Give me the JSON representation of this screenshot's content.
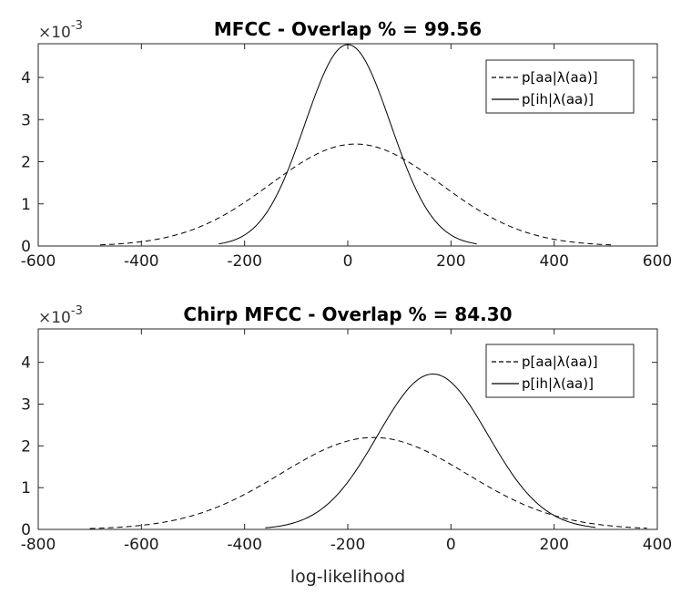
{
  "chart_data": [
    {
      "type": "line",
      "title": "MFCC - Overlap % = 99.56",
      "y_exponent_label": "×10",
      "y_exponent_power": "-3",
      "xlim": [
        -600,
        600
      ],
      "ylim": [
        0,
        4.8
      ],
      "xticks": [
        -600,
        -400,
        -200,
        0,
        200,
        400,
        600
      ],
      "xtick_labels": [
        "-600",
        "-400",
        "-200",
        "0",
        "200",
        "400",
        "600"
      ],
      "yticks": [
        0,
        1,
        2,
        3,
        4
      ],
      "ytick_labels": [
        "0",
        "1",
        "2",
        "3",
        "4"
      ],
      "xlabel": "",
      "ylabel": "",
      "legend": "top-right",
      "series": [
        {
          "name": "p[aa|λ(aa)]",
          "style": "dashed",
          "mean": 15,
          "peak": 2.42,
          "sigma": 165,
          "x_range": [
            -480,
            510
          ]
        },
        {
          "name": "p[ih|λ(aa)]",
          "style": "solid",
          "mean": 0,
          "peak": 4.78,
          "sigma": 83,
          "x_range": [
            -250,
            250
          ]
        }
      ]
    },
    {
      "type": "line",
      "title": "Chirp MFCC - Overlap % = 84.30",
      "y_exponent_label": "×10",
      "y_exponent_power": "-3",
      "xlim": [
        -800,
        400
      ],
      "ylim": [
        0,
        4.8
      ],
      "xticks": [
        -800,
        -600,
        -400,
        -200,
        0,
        200,
        400
      ],
      "xtick_labels": [
        "-800",
        "-600",
        "-400",
        "-200",
        "0",
        "200",
        "400"
      ],
      "yticks": [
        0,
        1,
        2,
        3,
        4
      ],
      "ytick_labels": [
        "0",
        "1",
        "2",
        "3",
        "4"
      ],
      "xlabel": "log-likelihood",
      "ylabel": "",
      "legend": "top-right",
      "series": [
        {
          "name": "p[aa|λ(aa)]",
          "style": "dashed",
          "mean": -150,
          "peak": 2.2,
          "sigma": 180,
          "x_range": [
            -700,
            380
          ]
        },
        {
          "name": "p[ih|λ(aa)]",
          "style": "solid",
          "mean": -35,
          "peak": 3.72,
          "sigma": 107,
          "x_range": [
            -360,
            280
          ]
        }
      ]
    }
  ]
}
